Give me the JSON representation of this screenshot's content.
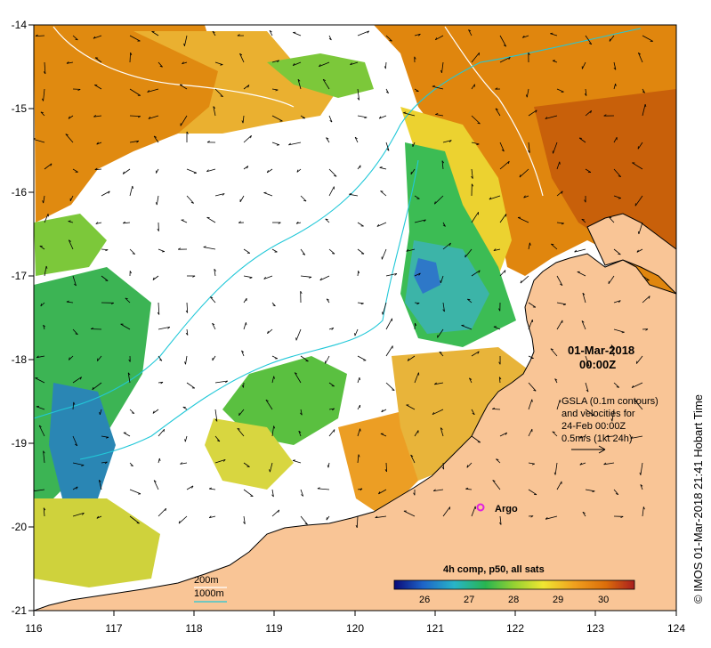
{
  "map": {
    "x_ticks": [
      "116",
      "117",
      "118",
      "119",
      "120",
      "121",
      "122",
      "123",
      "124"
    ],
    "y_ticks": [
      "-14",
      "-15",
      "-16",
      "-17",
      "-18",
      "-19",
      "-20",
      "-21"
    ],
    "date_line1": "01-Mar-2018",
    "date_line2": "00:00Z",
    "gsla_lines": [
      "GSLA (0.1m contours)",
      "and velocities for",
      "24-Feb 00:00Z",
      "0.5m/s (1kt 24h)"
    ],
    "argo_label": "Argo",
    "isobath_200": "200m",
    "isobath_1000": "1000m"
  },
  "colorbar": {
    "title": "4h comp, p50, all sats",
    "labels": [
      "26",
      "27",
      "28",
      "29",
      "30"
    ],
    "colors": [
      "#0a0a78",
      "#1e64c8",
      "#28b4c8",
      "#28b450",
      "#96d232",
      "#f0e632",
      "#f0a01e",
      "#dc6e0a",
      "#aa1e1e"
    ]
  },
  "credit": "© IMOS 01-Mar-2018 21:41 Hobart Time",
  "colors": {
    "land": "#f9c596",
    "isobath_200": "#ffffff",
    "isobath_1000": "#22c8d8",
    "argo": "#e020e0"
  }
}
